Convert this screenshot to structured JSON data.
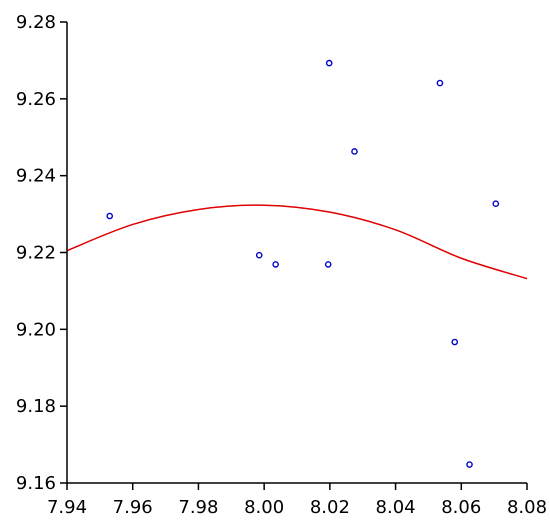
{
  "chart_data": {
    "type": "scatter",
    "xlim": [
      7.94,
      8.08
    ],
    "ylim": [
      9.16,
      9.28
    ],
    "x_ticks": [
      "7.94",
      "7.96",
      "7.98",
      "8.00",
      "8.02",
      "8.04",
      "8.06",
      "8.08"
    ],
    "y_ticks": [
      "9.16",
      "9.18",
      "9.20",
      "9.22",
      "9.24",
      "9.26",
      "9.28"
    ],
    "grid": false,
    "points": [
      {
        "x": 7.953,
        "y": 9.2295
      },
      {
        "x": 7.9985,
        "y": 9.2193
      },
      {
        "x": 8.0035,
        "y": 9.2169
      },
      {
        "x": 8.0195,
        "y": 9.2169
      },
      {
        "x": 8.0198,
        "y": 9.2693
      },
      {
        "x": 8.0275,
        "y": 9.2463
      },
      {
        "x": 8.0535,
        "y": 9.2641
      },
      {
        "x": 8.058,
        "y": 9.1967
      },
      {
        "x": 8.0625,
        "y": 9.1648
      },
      {
        "x": 8.0705,
        "y": 9.2327
      }
    ],
    "fit_curve": [
      {
        "x": 7.94,
        "y": 9.2205
      },
      {
        "x": 7.96,
        "y": 9.2273
      },
      {
        "x": 7.98,
        "y": 9.2312
      },
      {
        "x": 8.0,
        "y": 9.2323
      },
      {
        "x": 8.02,
        "y": 9.2305
      },
      {
        "x": 8.04,
        "y": 9.2259
      },
      {
        "x": 8.06,
        "y": 9.2185
      },
      {
        "x": 8.08,
        "y": 9.2132
      }
    ],
    "colors": {
      "points": "#0000cc",
      "fit_curve": "#e00000",
      "axes": "#000000"
    }
  }
}
